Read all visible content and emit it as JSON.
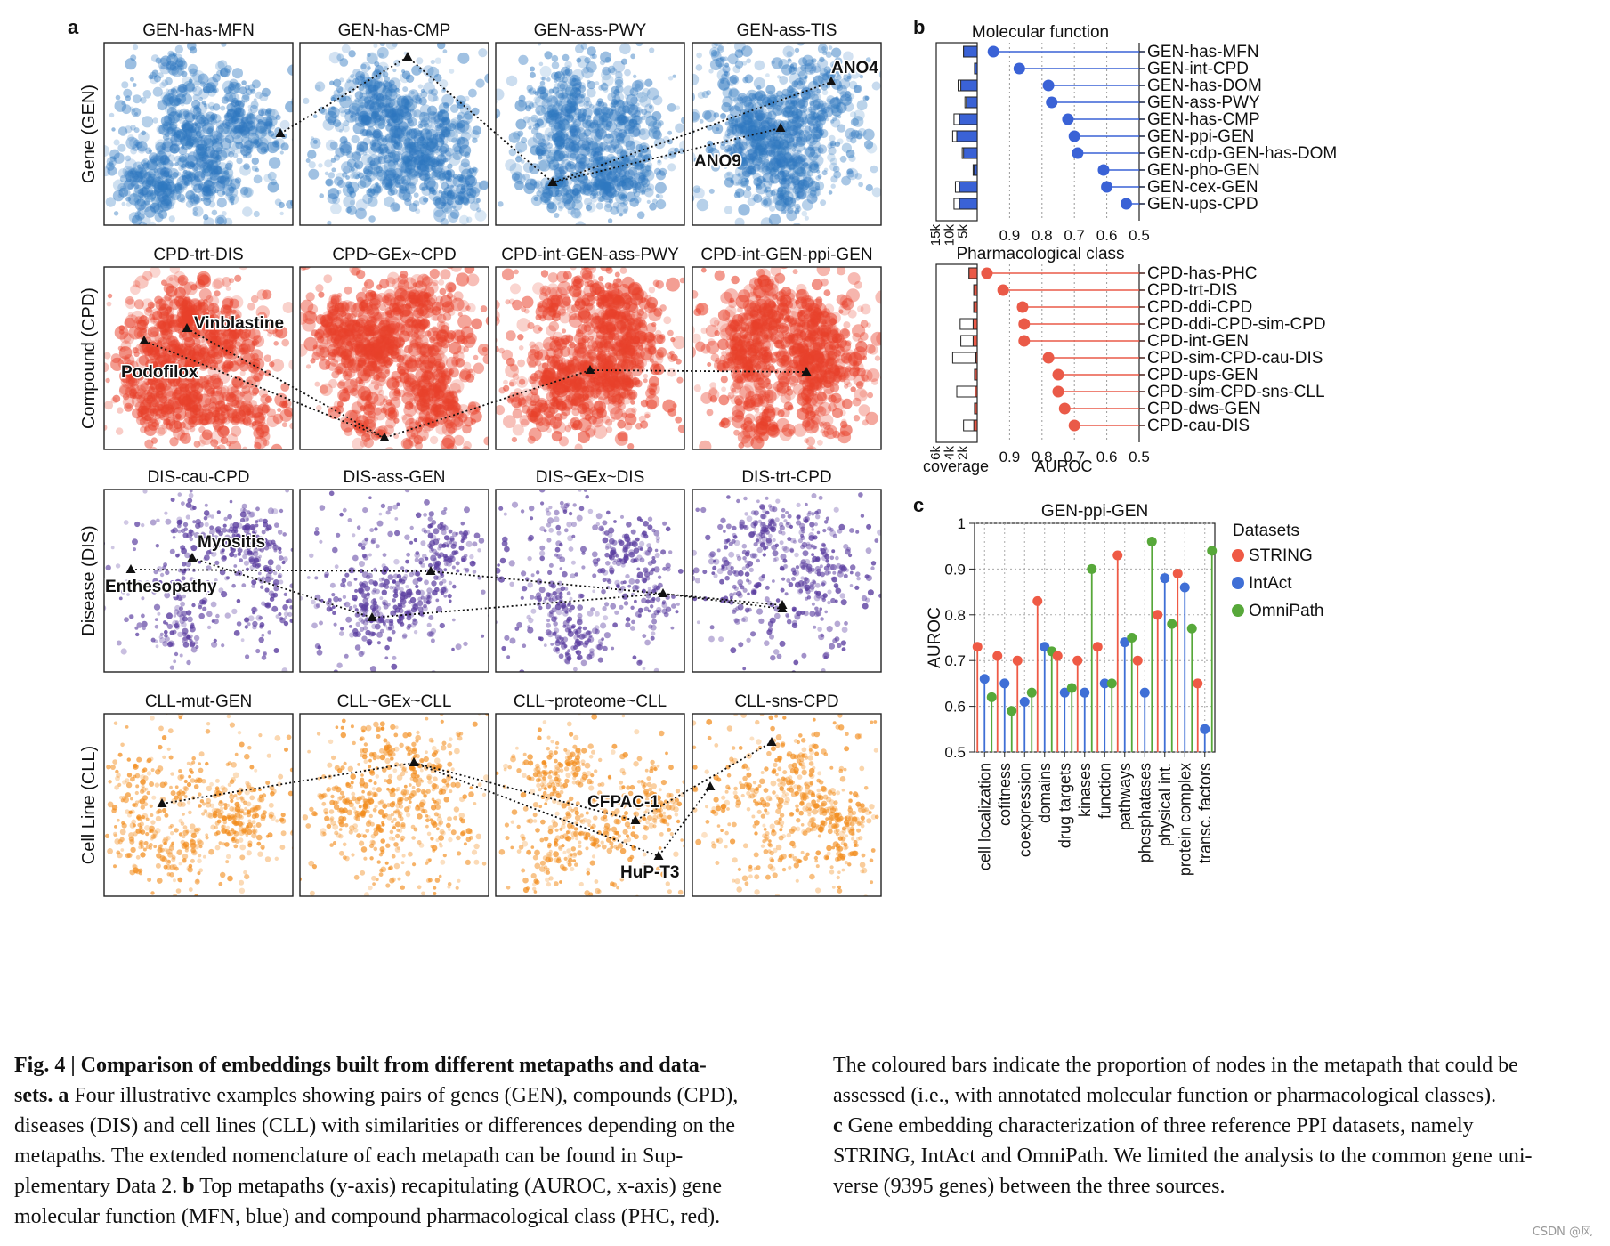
{
  "panel_labels": {
    "a": "a",
    "b": "b",
    "c": "c"
  },
  "panel_a": {
    "row_labels": [
      "Gene (GEN)",
      "Compound (CPD)",
      "Disease (DIS)",
      "Cell Line (CLL)"
    ],
    "colors": [
      "#2f78c0",
      "#e8412b",
      "#5b3ea0",
      "#f28c1c"
    ],
    "titles": [
      [
        "GEN-has-MFN",
        "GEN-has-CMP",
        "GEN-ass-PWY",
        "GEN-ass-TIS"
      ],
      [
        "CPD-trt-DIS",
        "CPD~GEx~CPD",
        "CPD-int-GEN-ass-PWY",
        "CPD-int-GEN-ppi-GEN"
      ],
      [
        "DIS-cau-CPD",
        "DIS-ass-GEN",
        "DIS~GEx~DIS",
        "DIS-trt-CPD"
      ],
      [
        "CLL-mut-GEN",
        "CLL~GEx~CLL",
        "CLL~proteome~CLL",
        "CLL-sns-CPD"
      ]
    ],
    "annotations": {
      "gen": [
        "ANO4",
        "ANO9"
      ],
      "cpd": [
        "Vinblastine",
        "Podofilox"
      ],
      "dis": [
        "Myositis",
        "Enthesopathy"
      ],
      "cll": [
        "CFPAC-1",
        "HuP-T3"
      ]
    }
  },
  "chart_data": [
    {
      "type": "lollipop",
      "panel": "b-top",
      "title": "Molecular function",
      "categories": [
        "GEN-has-MFN",
        "GEN-int-CPD",
        "GEN-has-DOM",
        "GEN-ass-PWY",
        "GEN-has-CMP",
        "GEN-ppi-GEN",
        "GEN-cdp-GEN-has-DOM",
        "GEN-pho-GEN",
        "GEN-cex-GEN",
        "GEN-ups-CPD"
      ],
      "auroc": [
        0.95,
        0.87,
        0.78,
        0.77,
        0.72,
        0.7,
        0.69,
        0.61,
        0.6,
        0.54
      ],
      "coverage_total": [
        5000,
        1000,
        7000,
        4500,
        8500,
        9000,
        5500,
        1500,
        8000,
        8500
      ],
      "coverage_annotated": [
        5000,
        800,
        6000,
        4000,
        6500,
        7500,
        5000,
        1200,
        6500,
        6500
      ],
      "xlim": [
        0.5,
        0.95
      ],
      "xticks": [
        "0.9",
        "0.8",
        "0.7",
        "0.6",
        "0.5"
      ],
      "coverage_ticks": [
        "15k",
        "10k",
        "5k"
      ],
      "color": "#3a62d6"
    },
    {
      "type": "lollipop",
      "panel": "b-bottom",
      "title": "Pharmacological class",
      "categories": [
        "CPD-has-PHC",
        "CPD-trt-DIS",
        "CPD-ddi-CPD",
        "CPD-ddi-CPD-sim-CPD",
        "CPD-int-GEN",
        "CPD-sim-CPD-cau-DIS",
        "CPD-ups-GEN",
        "CPD-sim-CPD-sns-CLL",
        "CPD-dws-GEN",
        "CPD-cau-DIS"
      ],
      "auroc": [
        0.97,
        0.92,
        0.86,
        0.855,
        0.855,
        0.78,
        0.75,
        0.75,
        0.73,
        0.7
      ],
      "coverage_total": [
        1200,
        500,
        500,
        2500,
        2400,
        3600,
        400,
        3000,
        400,
        2000
      ],
      "coverage_annotated": [
        1200,
        500,
        500,
        600,
        600,
        200,
        300,
        300,
        300,
        500
      ],
      "xlim": [
        0.5,
        0.97
      ],
      "xticks": [
        "0.9",
        "0.8",
        "0.7",
        "0.6",
        "0.5"
      ],
      "coverage_ticks": [
        "6k",
        "4k",
        "2k"
      ],
      "xlabel_coverage": "coverage",
      "xlabel": "AUROC",
      "color": "#ea5a48"
    },
    {
      "type": "lollipop-grouped",
      "panel": "c",
      "title": "GEN-ppi-GEN",
      "ylabel": "AUROC",
      "ylim": [
        0.5,
        1.0
      ],
      "yticks": [
        "0.5",
        "0.6",
        "0.7",
        "0.8",
        "0.9",
        "1"
      ],
      "categories": [
        "cell localization",
        "cofitness",
        "coexpression",
        "domains",
        "drug targets",
        "kinases",
        "function",
        "pathways",
        "phosphatases",
        "physical int.",
        "protein complex",
        "transc. factors"
      ],
      "legend_title": "Datasets",
      "series": [
        {
          "name": "STRING",
          "color": "#ef5a45",
          "values": [
            0.73,
            0.71,
            0.7,
            0.83,
            0.71,
            0.7,
            0.73,
            0.93,
            0.7,
            0.8,
            0.89,
            0.65
          ]
        },
        {
          "name": "IntAct",
          "color": "#3f6fd6",
          "values": [
            0.66,
            0.65,
            0.61,
            0.73,
            0.63,
            0.63,
            0.65,
            0.74,
            0.63,
            0.88,
            0.86,
            0.55
          ]
        },
        {
          "name": "OmniPath",
          "color": "#57a83a",
          "values": [
            0.62,
            0.59,
            0.63,
            0.72,
            0.64,
            0.9,
            0.65,
            0.75,
            0.96,
            0.78,
            0.77,
            0.94
          ]
        }
      ]
    }
  ],
  "caption": {
    "left": [
      {
        "bold": "Fig. 4 | Comparison of embeddings built from different metapaths and data-",
        "text": ""
      },
      {
        "bold": "sets. a",
        "text": " Four illustrative examples showing pairs of genes (GEN), compounds (CPD),"
      },
      {
        "bold": "",
        "text": "diseases (DIS) and cell lines (CLL) with similarities or differences depending on the"
      },
      {
        "bold": "",
        "text": "metapaths. The extended nomenclature of each metapath can be found in Sup-"
      },
      {
        "bold": "",
        "text": "plementary Data 2. "
      },
      {
        "bold": "",
        "text": "molecular function (MFN, blue) and compound pharmacological class (PHC, red)."
      }
    ],
    "left_line5_bold": "b",
    "left_line5_tail": " Top metapaths (y-axis) recapitulating (AUROC, x-axis) gene",
    "right": [
      {
        "bold": "",
        "text": "The coloured bars indicate the proportion of nodes in the metapath that could be"
      },
      {
        "bold": "",
        "text": "assessed (i.e., with annotated molecular function or pharmacological classes)."
      },
      {
        "bold": "c",
        "text": " Gene embedding characterization of three reference PPI datasets, namely"
      },
      {
        "bold": "",
        "text": "STRING, IntAct and OmniPath. We limited the analysis to the common gene uni-"
      },
      {
        "bold": "",
        "text": "verse (9395 genes) between the three sources."
      }
    ]
  },
  "watermark": "CSDN @风"
}
